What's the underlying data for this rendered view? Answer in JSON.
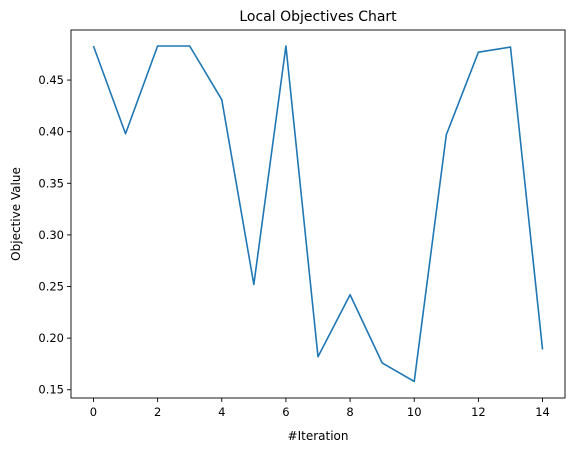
{
  "chart_data": {
    "type": "line",
    "title": "Local Objectives Chart",
    "xlabel": "#Iteration",
    "ylabel": "Objective Value",
    "x": [
      0,
      1,
      2,
      3,
      4,
      5,
      6,
      7,
      8,
      9,
      10,
      11,
      12,
      13,
      14
    ],
    "series": [
      {
        "values": [
          0.483,
          0.398,
          0.483,
          0.483,
          0.431,
          0.252,
          0.483,
          0.182,
          0.242,
          0.176,
          0.158,
          0.397,
          0.477,
          0.482,
          0.189
        ],
        "color": "#1f77b4"
      }
    ],
    "xlim": [
      -0.7,
      14.7
    ],
    "ylim": [
      0.142,
      0.4985
    ],
    "xticks": [
      0,
      2,
      4,
      6,
      8,
      10,
      12,
      14
    ],
    "xtick_labels": [
      "0",
      "2",
      "4",
      "6",
      "8",
      "10",
      "12",
      "14"
    ],
    "yticks": [
      0.15,
      0.2,
      0.25,
      0.3,
      0.35,
      0.4,
      0.45
    ],
    "ytick_labels": [
      "0.15",
      "0.20",
      "0.25",
      "0.30",
      "0.35",
      "0.40",
      "0.45"
    ],
    "grid": false,
    "legend": "none"
  }
}
